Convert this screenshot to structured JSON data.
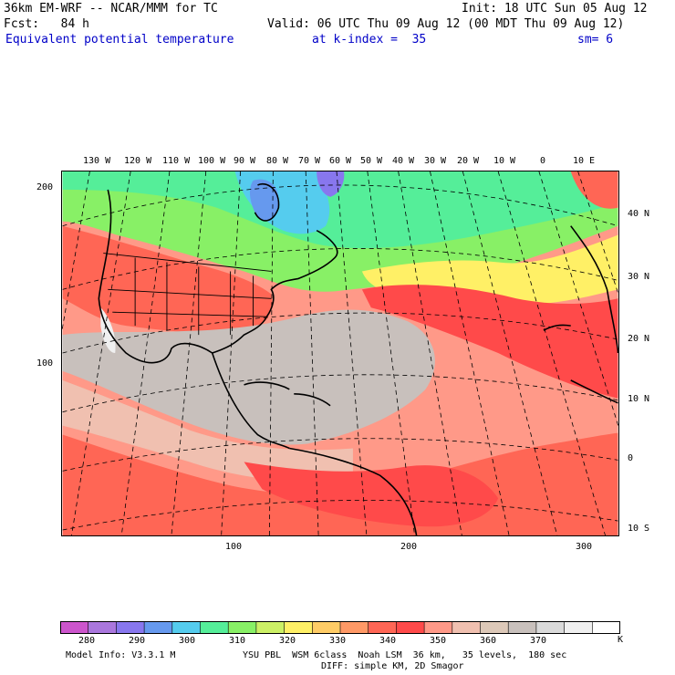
{
  "header": {
    "model_line": "36km EM-WRF -- NCAR/MMM for TC",
    "init_line": "Init: 18 UTC Sun 05 Aug 12",
    "fcst_line": "Fcst:   84 h",
    "valid_line": "Valid: 06 UTC Thu 09 Aug 12 (00 MDT Thu 09 Aug 12)",
    "field_name": "Equivalent potential temperature",
    "level_label": "at k-index =  35",
    "smoothing_label": "sm= 6"
  },
  "map": {
    "longitude_labels": [
      "130 W",
      "120 W",
      "110 W",
      "100 W",
      "90 W",
      "80 W",
      "70 W",
      "60 W",
      "50 W",
      "40 W",
      "30 W",
      "20 W",
      "10 W",
      "0",
      "10 E"
    ],
    "latitude_labels": [
      "40 N",
      "30 N",
      "20 N",
      "10 N",
      "0",
      "10 S"
    ],
    "grid_y_labels": [
      "200",
      "100"
    ],
    "grid_x_labels": [
      "100",
      "200",
      "300"
    ],
    "colors": {
      "frame": "#000000",
      "grid": "#000000"
    }
  },
  "colorbar": {
    "tick_labels": [
      "280",
      "290",
      "300",
      "310",
      "320",
      "330",
      "340",
      "350",
      "360",
      "370"
    ],
    "unit": "K",
    "colors": [
      "#cc55cc",
      "#aa77dd",
      "#8877ee",
      "#6699ee",
      "#55ccee",
      "#55ee99",
      "#88f066",
      "#ccf066",
      "#fff066",
      "#ffcc66",
      "#ff9966",
      "#ff6655",
      "#ff4a4a",
      "#ff9988",
      "#f0c0b0",
      "#dcc8b8",
      "#c8c0bc",
      "#dadada",
      "#f0f0f0",
      "#ffffff"
    ]
  },
  "footer": {
    "model_info": "Model Info: V3.3.1 M",
    "physics_line": "YSU PBL  WSM 6class  Noah LSM  36 km,   35 levels,  180 sec",
    "diffusion_line": "DIFF: simple KM, 2D Smagor"
  }
}
